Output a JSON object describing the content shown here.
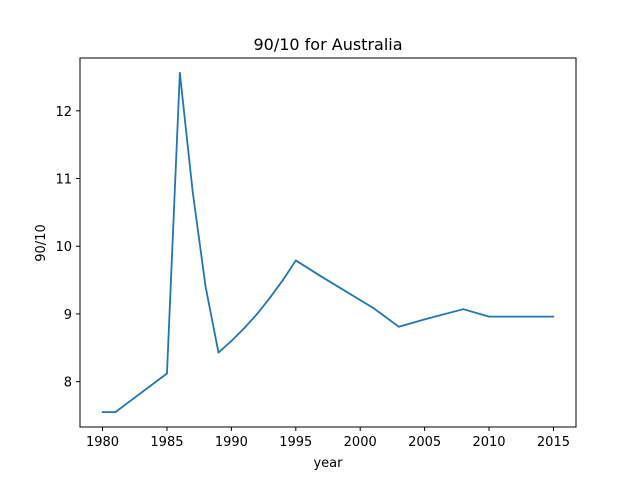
{
  "chart_data": {
    "type": "line",
    "title": "90/10 for Australia",
    "xlabel": "year",
    "ylabel": "90/10",
    "xlim": [
      1978.25,
      2016.75
    ],
    "ylim": [
      7.33,
      12.78
    ],
    "xticks": [
      1980,
      1985,
      1990,
      1995,
      2000,
      2005,
      2010,
      2015
    ],
    "yticks": [
      8,
      9,
      10,
      11,
      12
    ],
    "grid": false,
    "line_color": "#1f77b4",
    "series": [
      {
        "x": [
          1980,
          1981,
          1985,
          1986,
          1987,
          1988,
          1989,
          1990,
          1991,
          1992,
          1993,
          1994,
          1995,
          1997,
          2001,
          2003,
          2005,
          2008,
          2010,
          2015
        ],
        "y": [
          7.55,
          7.55,
          8.12,
          12.56,
          10.8,
          9.4,
          8.43,
          8.6,
          8.79,
          9.0,
          9.24,
          9.5,
          9.79,
          9.55,
          9.09,
          8.81,
          8.92,
          9.07,
          8.96,
          8.96
        ]
      }
    ]
  }
}
